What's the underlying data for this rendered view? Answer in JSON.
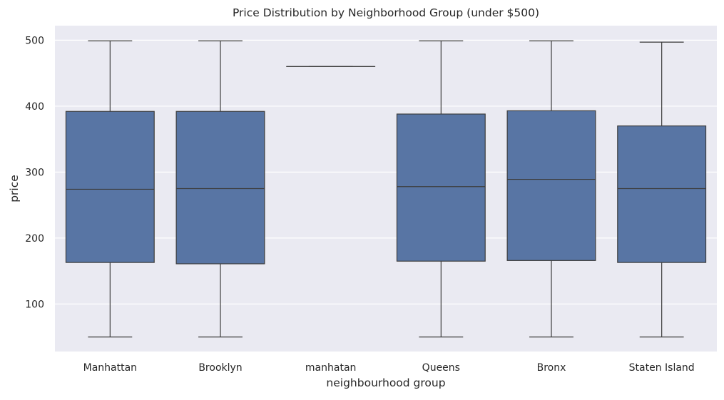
{
  "chart_data": {
    "type": "box",
    "title": "Price Distribution by Neighborhood Group (under $500)",
    "xlabel": "neighbourhood group",
    "ylabel": "price",
    "ylim": [
      28,
      522
    ],
    "yticks": [
      100,
      200,
      300,
      400,
      500
    ],
    "grid": true,
    "legend": "none",
    "colors": {
      "background": "#eaeaf2",
      "box_fill": "#5875a4",
      "line": "#3d3d3d",
      "grid": "#ffffff"
    },
    "categories": [
      "Manhattan",
      "Brooklyn",
      "manhatan",
      "Queens",
      "Bronx",
      "Staten Island"
    ],
    "boxes": [
      {
        "category": "Manhattan",
        "whisker_low": 50,
        "q1": 163,
        "median": 274,
        "q3": 392,
        "whisker_high": 499
      },
      {
        "category": "Brooklyn",
        "whisker_low": 50,
        "q1": 161,
        "median": 275,
        "q3": 392,
        "whisker_high": 499
      },
      {
        "category": "manhatan",
        "whisker_low": 460,
        "q1": 460,
        "median": 460,
        "q3": 460,
        "whisker_high": 460
      },
      {
        "category": "Queens",
        "whisker_low": 50,
        "q1": 165,
        "median": 278,
        "q3": 388,
        "whisker_high": 499
      },
      {
        "category": "Bronx",
        "whisker_low": 50,
        "q1": 166,
        "median": 289,
        "q3": 393,
        "whisker_high": 499
      },
      {
        "category": "Staten Island",
        "whisker_low": 50,
        "q1": 163,
        "median": 275,
        "q3": 370,
        "whisker_high": 497
      }
    ]
  }
}
